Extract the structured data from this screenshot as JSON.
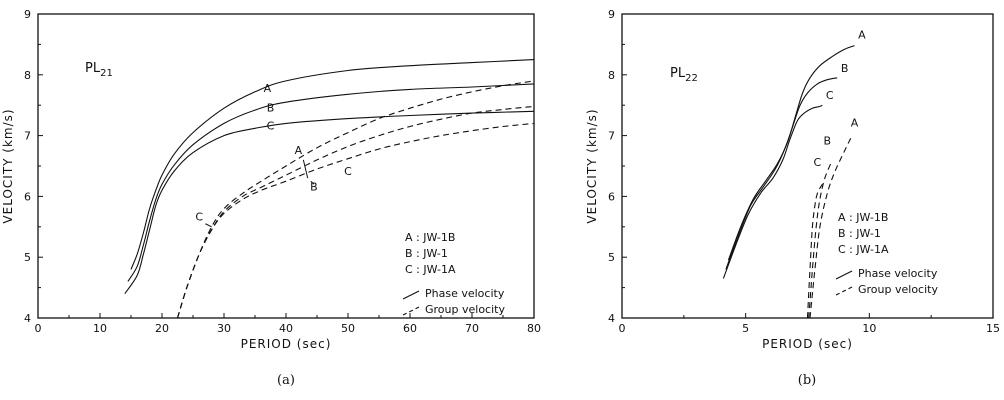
{
  "chart_data": [
    {
      "type": "line",
      "panel_label": "(a)",
      "title": "PL",
      "title_sub": "21",
      "xlabel": "PERIOD (sec)",
      "ylabel": "VELOCITY (km/s)",
      "xlim": [
        0,
        80
      ],
      "ylim": [
        4,
        9
      ],
      "xticks": [
        0,
        10,
        20,
        30,
        40,
        50,
        60,
        70,
        80
      ],
      "yticks": [
        4,
        5,
        6,
        7,
        8,
        9
      ],
      "legend": {
        "placement": "lower-right",
        "models": [
          "A : JW-1B",
          "B : JW-1",
          "C : JW-1A"
        ],
        "styles": [
          "Phase velocity",
          "Group velocity"
        ]
      },
      "series": [
        {
          "name": "A",
          "kind": "phase",
          "dash": false,
          "x": [
            15,
            16,
            17,
            18,
            19,
            20,
            22,
            25,
            30,
            35,
            40,
            50,
            60,
            70,
            80
          ],
          "y": [
            4.8,
            5.05,
            5.4,
            5.8,
            6.1,
            6.35,
            6.7,
            7.05,
            7.45,
            7.72,
            7.9,
            8.07,
            8.15,
            8.2,
            8.25
          ]
        },
        {
          "name": "B",
          "kind": "phase",
          "dash": false,
          "x": [
            14.5,
            16,
            17,
            18,
            19,
            20,
            22,
            25,
            30,
            35,
            40,
            50,
            60,
            70,
            80
          ],
          "y": [
            4.6,
            4.85,
            5.2,
            5.6,
            5.95,
            6.2,
            6.52,
            6.85,
            7.2,
            7.42,
            7.55,
            7.68,
            7.76,
            7.8,
            7.85
          ]
        },
        {
          "name": "C",
          "kind": "phase",
          "dash": false,
          "x": [
            14,
            16,
            17,
            18,
            19,
            20,
            22,
            25,
            30,
            35,
            40,
            50,
            60,
            70,
            80
          ],
          "y": [
            4.4,
            4.7,
            5.05,
            5.45,
            5.85,
            6.1,
            6.42,
            6.72,
            7.0,
            7.12,
            7.2,
            7.28,
            7.33,
            7.37,
            7.4
          ]
        },
        {
          "name": "A",
          "kind": "group",
          "dash": true,
          "x": [
            22.5,
            24,
            26,
            28,
            30,
            33,
            36,
            40,
            45,
            50,
            55,
            60,
            65,
            70,
            75,
            80
          ],
          "y": [
            4.0,
            4.5,
            5.05,
            5.5,
            5.8,
            6.05,
            6.25,
            6.5,
            6.8,
            7.05,
            7.28,
            7.45,
            7.6,
            7.72,
            7.82,
            7.9
          ]
        },
        {
          "name": "B",
          "kind": "group",
          "dash": true,
          "x": [
            22.5,
            24,
            26,
            28,
            30,
            33,
            36,
            40,
            45,
            50,
            55,
            60,
            65,
            70,
            75,
            80
          ],
          "y": [
            4.0,
            4.5,
            5.05,
            5.45,
            5.75,
            6.0,
            6.15,
            6.35,
            6.6,
            6.82,
            7.0,
            7.15,
            7.27,
            7.37,
            7.43,
            7.48
          ]
        },
        {
          "name": "C",
          "kind": "group",
          "dash": true,
          "x": [
            22.5,
            24,
            26,
            28,
            30,
            33,
            36,
            40,
            45,
            50,
            55,
            60,
            65,
            70,
            75,
            80
          ],
          "y": [
            4.0,
            4.5,
            5.05,
            5.45,
            5.72,
            5.95,
            6.1,
            6.25,
            6.45,
            6.62,
            6.78,
            6.9,
            7.0,
            7.08,
            7.15,
            7.2
          ]
        }
      ],
      "annotations": [
        {
          "text": "A",
          "x": 37,
          "y": 7.72
        },
        {
          "text": "B",
          "x": 37.5,
          "y": 7.4
        },
        {
          "text": "C",
          "x": 37.5,
          "y": 7.1
        },
        {
          "text": "A",
          "x": 42,
          "y": 6.7
        },
        {
          "text": "B",
          "x": 44.5,
          "y": 6.1
        },
        {
          "text": "C",
          "x": 50,
          "y": 6.35
        },
        {
          "text": "C",
          "x": 26,
          "y": 5.6
        }
      ]
    },
    {
      "type": "line",
      "panel_label": "(b)",
      "title": "PL",
      "title_sub": "22",
      "xlabel": "PERIOD (sec)",
      "ylabel": "VELOCITY (km/s)",
      "xlim": [
        0,
        15
      ],
      "ylim": [
        4,
        9
      ],
      "xticks": [
        0,
        5,
        10,
        15
      ],
      "yticks": [
        4,
        5,
        6,
        7,
        8,
        9
      ],
      "legend": {
        "placement": "lower-right",
        "models": [
          "A : JW-1B",
          "B : JW-1",
          "C : JW-1A"
        ],
        "styles": [
          "Phase velocity",
          "Group velocity"
        ]
      },
      "series": [
        {
          "name": "A",
          "kind": "phase",
          "dash": false,
          "x": [
            4.3,
            4.8,
            5.3,
            5.8,
            6.3,
            6.7,
            7.0,
            7.3,
            7.6,
            8.0,
            8.5,
            9.0,
            9.4
          ],
          "y": [
            4.95,
            5.5,
            5.95,
            6.25,
            6.55,
            6.9,
            7.3,
            7.7,
            7.95,
            8.15,
            8.3,
            8.42,
            8.48
          ]
        },
        {
          "name": "B",
          "kind": "phase",
          "dash": false,
          "x": [
            4.2,
            4.7,
            5.2,
            5.7,
            6.2,
            6.6,
            6.9,
            7.2,
            7.5,
            7.9,
            8.3,
            8.7
          ],
          "y": [
            4.8,
            5.35,
            5.85,
            6.15,
            6.45,
            6.8,
            7.15,
            7.5,
            7.7,
            7.85,
            7.92,
            7.95
          ]
        },
        {
          "name": "C",
          "kind": "phase",
          "dash": false,
          "x": [
            4.1,
            4.6,
            5.1,
            5.6,
            6.1,
            6.5,
            6.8,
            7.1,
            7.4,
            7.7,
            8.0,
            8.1
          ],
          "y": [
            4.65,
            5.2,
            5.7,
            6.05,
            6.3,
            6.6,
            6.95,
            7.25,
            7.38,
            7.45,
            7.48,
            7.5
          ]
        },
        {
          "name": "A",
          "kind": "group",
          "dash": true,
          "x": [
            7.6,
            7.8,
            8.0,
            8.3,
            8.6,
            9.0,
            9.3
          ],
          "y": [
            4.0,
            4.8,
            5.5,
            6.05,
            6.4,
            6.75,
            7.0
          ]
        },
        {
          "name": "B",
          "kind": "group",
          "dash": true,
          "x": [
            7.55,
            7.7,
            7.85,
            8.0,
            8.2,
            8.45
          ],
          "y": [
            4.0,
            4.8,
            5.5,
            5.95,
            6.3,
            6.55
          ]
        },
        {
          "name": "C",
          "kind": "group",
          "dash": true,
          "x": [
            7.5,
            7.6,
            7.7,
            7.8,
            7.9,
            8.1
          ],
          "y": [
            4.0,
            4.8,
            5.5,
            5.85,
            6.05,
            6.2
          ]
        }
      ],
      "annotations": [
        {
          "text": "A",
          "x": 9.7,
          "y": 8.6
        },
        {
          "text": "B",
          "x": 9.0,
          "y": 8.05
        },
        {
          "text": "C",
          "x": 8.4,
          "y": 7.6
        },
        {
          "text": "A",
          "x": 9.4,
          "y": 7.15
        },
        {
          "text": "B",
          "x": 8.3,
          "y": 6.85
        },
        {
          "text": "C",
          "x": 7.9,
          "y": 6.5
        }
      ]
    }
  ]
}
